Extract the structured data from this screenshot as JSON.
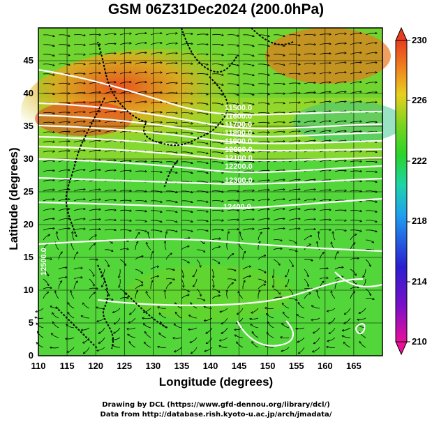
{
  "title": "GSM 06Z31Dec2024 (200.0hPa)",
  "axes": {
    "xlabel": "Longitude (degrees)",
    "ylabel": "Latitude  (degrees)",
    "x_ticks": [
      "110",
      "115",
      "120",
      "125",
      "130",
      "135",
      "140",
      "145",
      "150",
      "155",
      "160",
      "165"
    ],
    "y_ticks": [
      "0",
      "5",
      "10",
      "15",
      "20",
      "25",
      "30",
      "35",
      "40",
      "45"
    ],
    "xlim": [
      110,
      170
    ],
    "ylim": [
      0,
      50
    ]
  },
  "colorbar": {
    "ticks": [
      "230",
      "226",
      "222",
      "218",
      "214",
      "210"
    ],
    "range": [
      210,
      230
    ],
    "colors": [
      "#e8109a",
      "#2a1ed0",
      "#1ea0f0",
      "#1ed4a8",
      "#2ad42a",
      "#7ad41e",
      "#e8d01e",
      "#f08a1e",
      "#e83c1e"
    ]
  },
  "contour_labels": [
    "11900.0",
    "12000.0",
    "12100.0",
    "12200.0",
    "12300.0",
    "12400.0",
    "11500.0",
    "11600.0",
    "11700.0",
    "11800.0"
  ],
  "side_label": "12500.0",
  "credits": {
    "line1": "Drawing by DCL (https://www.gfd-dennou.org/library/dcl/)",
    "line2": "Data from http://database.rish.kyoto-u.ac.jp/arch/jmadata/"
  }
}
